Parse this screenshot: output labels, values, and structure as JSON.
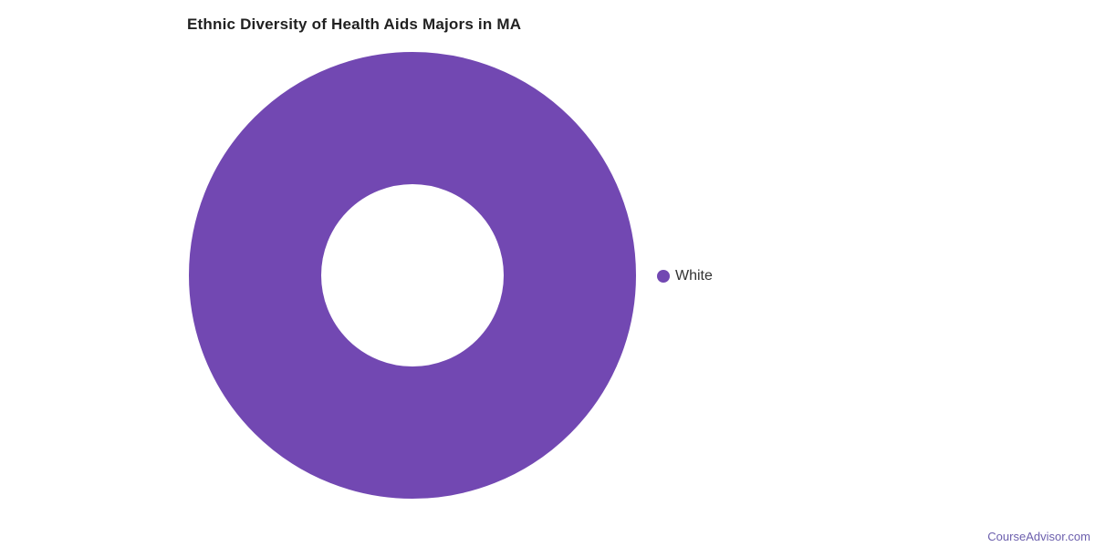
{
  "chart_data": {
    "type": "pie",
    "subtype": "donut",
    "title": "Ethnic Diversity of Health Aids Majors in MA",
    "categories": [
      "White"
    ],
    "values": [
      100
    ],
    "unit": "percent",
    "colors": [
      "#7248B2"
    ],
    "legend_position": "right",
    "inner_radius_px": 100,
    "outer_radius_px": 245,
    "background": "#ffffff"
  },
  "watermark": "CourseAdvisor.com"
}
